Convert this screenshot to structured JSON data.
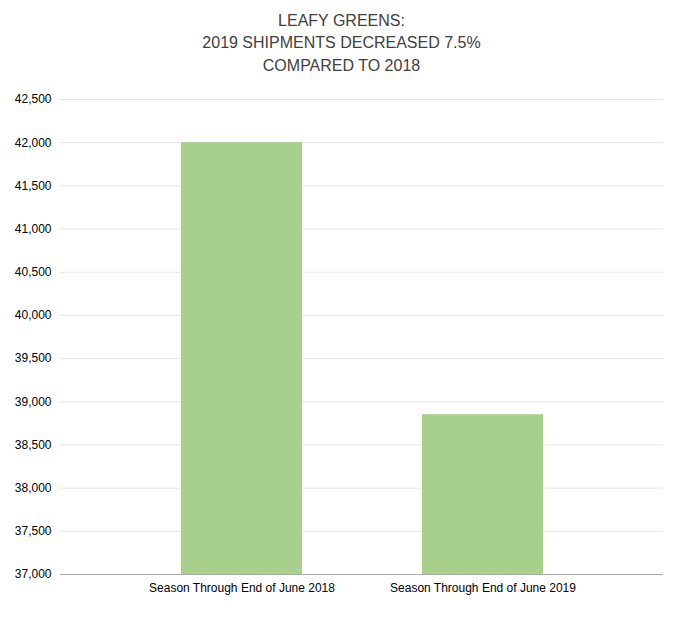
{
  "chart_data": {
    "type": "bar",
    "title": "LEAFY GREENS:\n2019 SHIPMENTS DECREASED 7.5%\nCOMPARED TO 2018",
    "categories": [
      "Season Through End of June 2018",
      "Season Through End of June 2019"
    ],
    "values": [
      42000,
      38850
    ],
    "color": "#a8d08d",
    "ylim": [
      37000,
      42500
    ],
    "yticks": [
      {
        "value": 37000,
        "label": "37,000"
      },
      {
        "value": 37500,
        "label": "37,500"
      },
      {
        "value": 38000,
        "label": "38,000"
      },
      {
        "value": 38500,
        "label": "38,500"
      },
      {
        "value": 39000,
        "label": "39,000"
      },
      {
        "value": 39500,
        "label": "39,500"
      },
      {
        "value": 40000,
        "label": "40,000"
      },
      {
        "value": 40500,
        "label": "40,500"
      },
      {
        "value": 41000,
        "label": "41,000"
      },
      {
        "value": 41500,
        "label": "41,500"
      },
      {
        "value": 42000,
        "label": "42,000"
      },
      {
        "value": 42500,
        "label": "42,500"
      }
    ],
    "grid": true
  }
}
